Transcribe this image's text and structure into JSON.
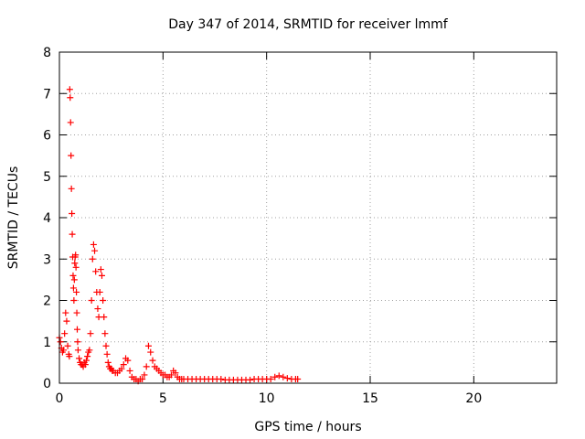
{
  "chart_data": {
    "type": "scatter",
    "title": "Day 347 of 2014, SRMTID for receiver lmmf",
    "xlabel": "GPS time / hours",
    "ylabel": "SRMTID / TECUs",
    "xlim": [
      0,
      24
    ],
    "ylim": [
      0,
      8
    ],
    "xticks": [
      0,
      5,
      10,
      15,
      20
    ],
    "yticks": [
      0,
      1,
      2,
      3,
      4,
      5,
      6,
      7,
      8
    ],
    "grid": true,
    "marker": "plus",
    "color": "#ff0000",
    "series": [
      {
        "name": "SRMTID",
        "x": [
          0.0,
          0.05,
          0.1,
          0.15,
          0.2,
          0.25,
          0.3,
          0.35,
          0.4,
          0.45,
          0.48,
          0.5,
          0.52,
          0.54,
          0.56,
          0.58,
          0.6,
          0.62,
          0.64,
          0.66,
          0.68,
          0.7,
          0.72,
          0.74,
          0.76,
          0.78,
          0.8,
          0.82,
          0.84,
          0.86,
          0.88,
          0.9,
          0.95,
          1.0,
          1.05,
          1.1,
          1.15,
          1.2,
          1.25,
          1.3,
          1.35,
          1.4,
          1.45,
          1.5,
          1.55,
          1.6,
          1.65,
          1.7,
          1.75,
          1.8,
          1.85,
          1.9,
          1.95,
          2.0,
          2.05,
          2.1,
          2.15,
          2.2,
          2.25,
          2.3,
          2.35,
          2.4,
          2.45,
          2.5,
          2.55,
          2.6,
          2.7,
          2.8,
          2.9,
          3.0,
          3.1,
          3.2,
          3.3,
          3.4,
          3.5,
          3.6,
          3.7,
          3.8,
          3.9,
          4.0,
          4.1,
          4.2,
          4.3,
          4.4,
          4.5,
          4.6,
          4.7,
          4.8,
          4.9,
          5.0,
          5.1,
          5.2,
          5.3,
          5.4,
          5.5,
          5.6,
          5.7,
          5.8,
          5.9,
          6.0,
          6.2,
          6.4,
          6.6,
          6.8,
          7.0,
          7.2,
          7.4,
          7.6,
          7.8,
          8.0,
          8.2,
          8.4,
          8.6,
          8.8,
          9.0,
          9.2,
          9.4,
          9.6,
          9.8,
          10.0,
          10.2,
          10.4,
          10.6,
          10.8,
          11.0,
          11.2,
          11.4,
          11.5
        ],
        "y": [
          1.1,
          1.0,
          0.85,
          0.75,
          0.8,
          1.2,
          1.7,
          1.5,
          0.9,
          0.7,
          0.65,
          7.1,
          6.9,
          6.3,
          5.5,
          4.7,
          4.1,
          3.6,
          3.05,
          2.6,
          2.3,
          2.0,
          2.5,
          2.9,
          3.05,
          3.1,
          2.8,
          2.2,
          1.7,
          1.3,
          1.0,
          0.8,
          0.6,
          0.5,
          0.45,
          0.45,
          0.4,
          0.5,
          0.45,
          0.55,
          0.65,
          0.75,
          0.8,
          1.2,
          2.0,
          3.0,
          3.35,
          3.2,
          2.7,
          2.2,
          1.8,
          1.6,
          2.2,
          2.75,
          2.6,
          2.0,
          1.6,
          1.2,
          0.9,
          0.7,
          0.5,
          0.4,
          0.35,
          0.35,
          0.3,
          0.3,
          0.25,
          0.25,
          0.3,
          0.35,
          0.45,
          0.6,
          0.55,
          0.3,
          0.15,
          0.1,
          0.1,
          0.05,
          0.1,
          0.1,
          0.2,
          0.4,
          0.9,
          0.75,
          0.55,
          0.4,
          0.35,
          0.3,
          0.25,
          0.2,
          0.2,
          0.15,
          0.15,
          0.2,
          0.3,
          0.25,
          0.15,
          0.1,
          0.1,
          0.1,
          0.1,
          0.1,
          0.1,
          0.1,
          0.1,
          0.1,
          0.1,
          0.1,
          0.1,
          0.08,
          0.08,
          0.08,
          0.08,
          0.08,
          0.08,
          0.08,
          0.1,
          0.1,
          0.1,
          0.1,
          0.1,
          0.15,
          0.18,
          0.15,
          0.12,
          0.1,
          0.1,
          0.1
        ]
      }
    ]
  }
}
